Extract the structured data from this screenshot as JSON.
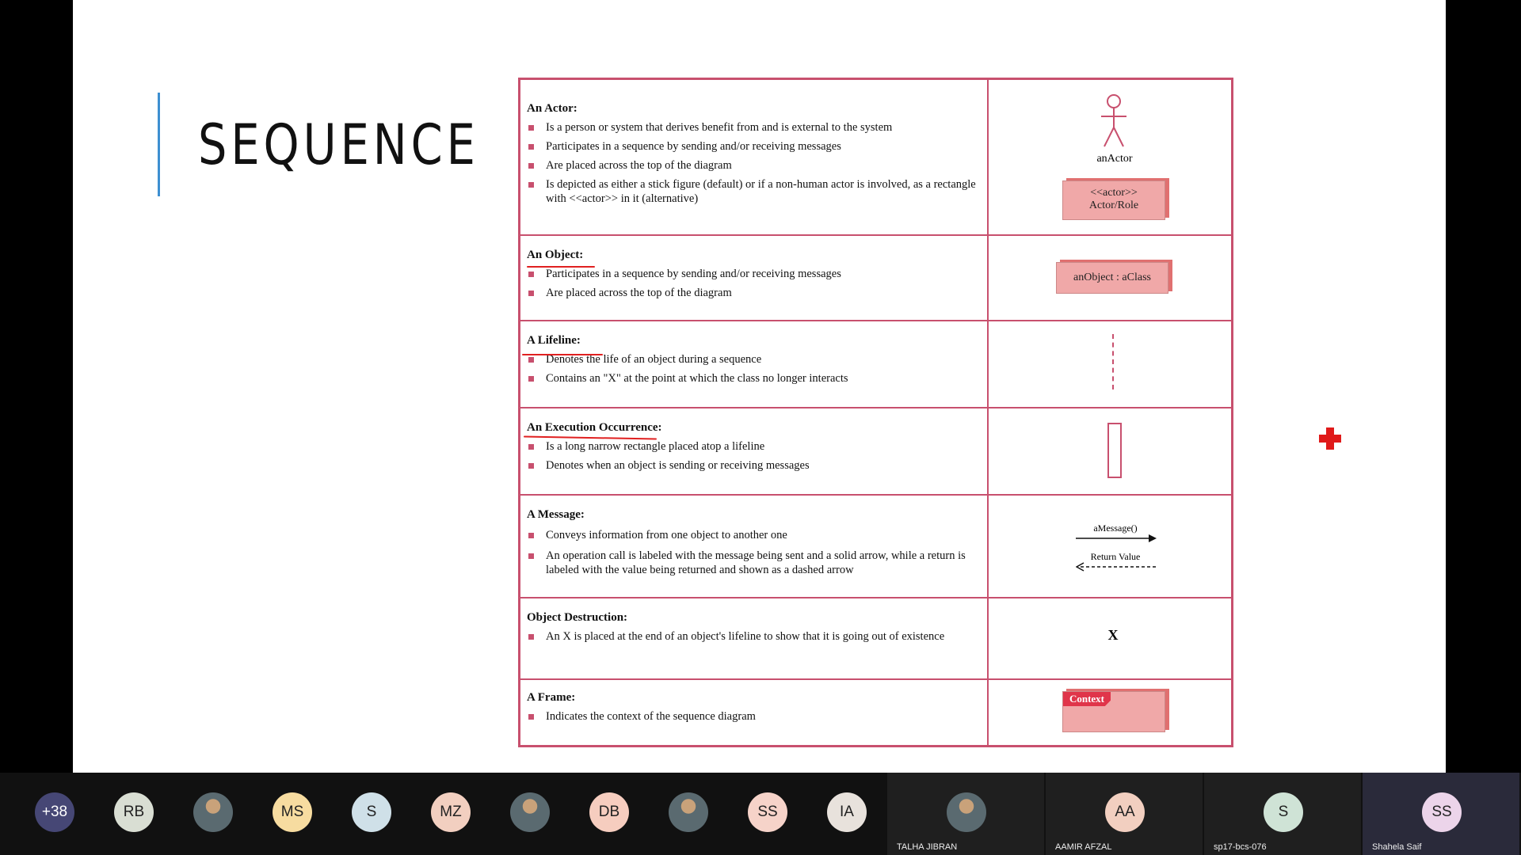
{
  "slide": {
    "title": "SEQUENCE",
    "rows": [
      {
        "heading": "An Actor:",
        "bullets": [
          "Is a person or system that derives benefit from and is external to the system",
          "Participates in a sequence by sending and/or receiving messages",
          "Are placed across the top of the diagram",
          "Is depicted as either a stick figure (default) or if a non-human actor is involved, as a rectangle with <<actor>> in it (alternative)"
        ]
      },
      {
        "heading": "An Object:",
        "bullets": [
          "Participates in a sequence by sending and/or receiving messages",
          "Are placed across the top of the diagram"
        ]
      },
      {
        "heading": "A Lifeline:",
        "bullets": [
          "Denotes the life of an object during a sequence",
          "Contains an \"X\" at the point at which the class no longer interacts"
        ]
      },
      {
        "heading": "An Execution Occurrence:",
        "bullets": [
          "Is a long narrow rectangle placed atop a lifeline",
          "Denotes when an object is sending or receiving messages"
        ]
      },
      {
        "heading": "A Message:",
        "bullets": [
          "Conveys information from one object to another one",
          "An operation call is labeled with the message being sent and a solid arrow, while a return is labeled with the value being returned and shown as a dashed arrow"
        ]
      },
      {
        "heading": "Object Destruction:",
        "bullets": [
          "An X is placed at the end of an object's lifeline to show that it is going out of existence"
        ]
      },
      {
        "heading": "A Frame:",
        "bullets": [
          "Indicates the context of the sequence diagram"
        ]
      }
    ],
    "symbols": {
      "actor_label": "anActor",
      "actor_box_line1": "<<actor>>",
      "actor_box_line2": "Actor/Role",
      "object_box": "anObject : aClass",
      "message_label": "aMessage()",
      "return_label": "Return Value",
      "destruction": "X",
      "frame_label": "Context"
    }
  },
  "meeting": {
    "overflow_count": "+38",
    "participants": [
      {
        "initials": "RB",
        "color": "#d9ded3"
      },
      {
        "initials": "",
        "color": "#c9a27a"
      },
      {
        "initials": "MS",
        "color": "#f7dca0"
      },
      {
        "initials": "S",
        "color": "#cfe0e8"
      },
      {
        "initials": "MZ",
        "color": "#f2cfc0"
      },
      {
        "initials": "",
        "color": "#8a9aa0"
      },
      {
        "initials": "DB",
        "color": "#f6cdbf"
      },
      {
        "initials": "",
        "color": "#6b6b5a"
      },
      {
        "initials": "SS",
        "color": "#f6d3c9"
      },
      {
        "initials": "IA",
        "color": "#e8e2dc"
      }
    ],
    "tiles": [
      {
        "name": "TALHA JIBRAN",
        "initials": "",
        "color": "#9aa0a0"
      },
      {
        "name": "AAMIR AFZAL",
        "initials": "AA",
        "color": "#f2cfc0"
      },
      {
        "name": "sp17-bcs-076",
        "initials": "S",
        "color": "#cfe3d6"
      },
      {
        "name": "Shahela Saif",
        "initials": "SS",
        "color": "#ecd4ea"
      }
    ]
  }
}
